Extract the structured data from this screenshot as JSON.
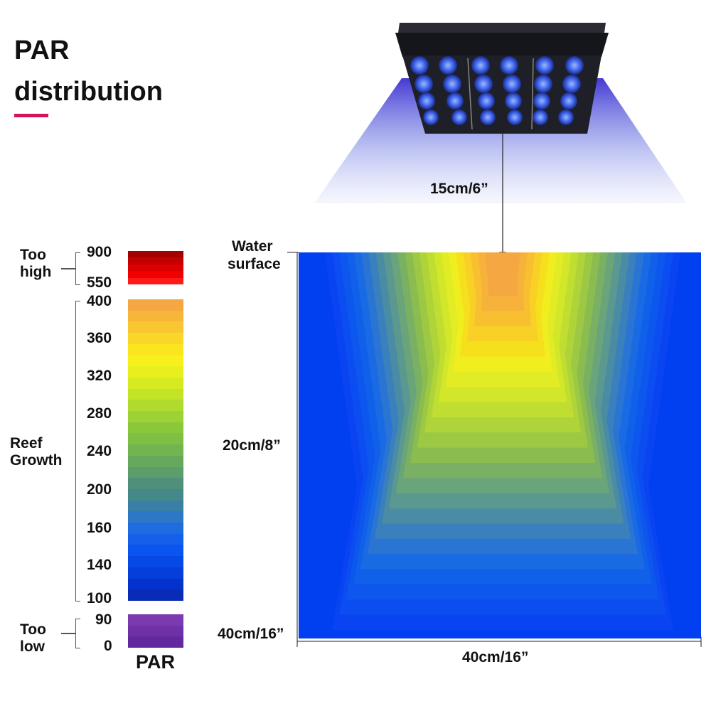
{
  "title": {
    "line1": "PAR",
    "line2": "distribution"
  },
  "colors": {
    "accent": "#d4145a",
    "too_high": [
      "#a30000",
      "#c40000",
      "#dd0000",
      "#f00000",
      "#ff1a1a"
    ],
    "growth": [
      "#f5a742",
      "#f7b63a",
      "#f8c631",
      "#f9d628",
      "#fae61f",
      "#f7f01c",
      "#e8ef1c",
      "#d6ea20",
      "#c2e326",
      "#aedb2d",
      "#9cd234",
      "#8ac83a",
      "#7ebf44",
      "#72b450",
      "#66a95d",
      "#5b9e6b",
      "#508f79",
      "#458888",
      "#3a7fa6",
      "#2d78c5",
      "#1f6ce0",
      "#1460ea",
      "#0a55f0",
      "#0649e6",
      "#053ed8",
      "#0333cc",
      "#0a2bb5"
    ],
    "too_low": [
      "#7c3ab0",
      "#6f31a8",
      "#62289e"
    ],
    "light_glow": "#4f4bd6",
    "fixture_body": "#1c1d24",
    "fixture_lens": "#3b66e8"
  },
  "scale": {
    "too_high_label_1": "Too",
    "too_high_label_2": "high",
    "reef_label_1": "Reef",
    "reef_label_2": "Growth",
    "too_low_label_1": "Too",
    "too_low_label_2": "low",
    "ticks": {
      "t900": "900",
      "t550": "550",
      "t400": "400",
      "t360": "360",
      "t320": "320",
      "t280": "280",
      "t240": "240",
      "t200": "200",
      "t160": "160",
      "t140": "140",
      "t100": "100",
      "t90": "90",
      "t0": "0"
    },
    "unit": "PAR"
  },
  "diagram": {
    "lamp_height": "15cm/6”",
    "water_surface_1": "Water",
    "water_surface_2": "surface",
    "mid_depth": "20cm/8”",
    "bottom_depth": "40cm/16”",
    "width": "40cm/16”",
    "contour_colors": [
      "#0a44f2",
      "#0b4df0",
      "#0d57ee",
      "#1060ea",
      "#1a6ae4",
      "#2a74d4",
      "#3a80bc",
      "#4a8ca4",
      "#5a9890",
      "#6aa47a",
      "#7ab064",
      "#8abc50",
      "#9cc844",
      "#aed43a",
      "#c0de32",
      "#d2e62a",
      "#e2ec24",
      "#f0ee1e",
      "#f6e01e",
      "#f8d026",
      "#f8c030",
      "#f6b23a",
      "#f5a742"
    ]
  }
}
